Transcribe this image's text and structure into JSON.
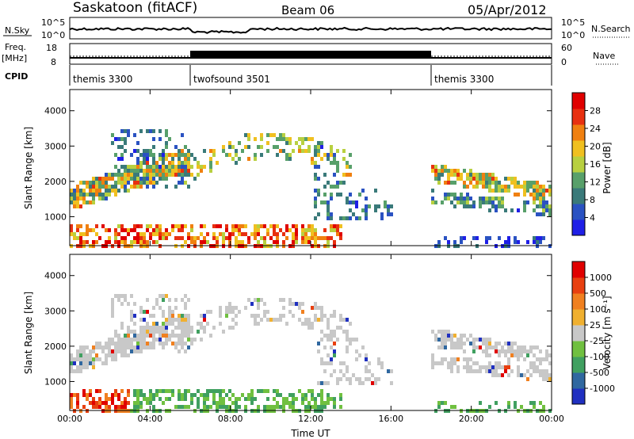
{
  "header": {
    "station": "Saskatoon (fitACF)",
    "beam": "Beam 06",
    "date": "05/Apr/2012"
  },
  "noise_panel": {
    "left_label": "N.Sky",
    "left_ticks": [
      "10^5",
      "10^0"
    ],
    "right_ticks": [
      "10^5",
      "10^0"
    ],
    "right_label": "N.Search"
  },
  "freq_panel": {
    "left_label_1": "Freq.",
    "left_label_2": "[MHz]",
    "left_ticks": [
      "18",
      "8"
    ],
    "right_ticks": [
      "60",
      "0"
    ],
    "right_label": "Nave"
  },
  "cpid_panel": {
    "label": "CPID",
    "segments": [
      {
        "name": "themis 3300",
        "start_hour": 0
      },
      {
        "name": "twofsound 3501",
        "start_hour": 6
      },
      {
        "name": "themis 3300",
        "start_hour": 18
      }
    ]
  },
  "chart_data": [
    {
      "type": "heatmap",
      "title": "",
      "xlabel": "",
      "ylabel": "Slant Range [km]",
      "xlim_hours": [
        0,
        24
      ],
      "ylim_km": [
        180,
        4600
      ],
      "y_ticks": [
        "1000",
        "2000",
        "3000",
        "4000"
      ],
      "colorbar": {
        "label": "Power [dB]",
        "ticks": [
          "28",
          "24",
          "20",
          "16",
          "12",
          "8",
          "4"
        ],
        "colors": [
          "#1f1fe6",
          "#2a52c2",
          "#3a7a7a",
          "#58a06a",
          "#b8d040",
          "#f0c020",
          "#f08010",
          "#e83010",
          "#e00000"
        ]
      },
      "features": [
        {
          "name": "scatter band A",
          "hours": [
            0,
            6
          ],
          "range_km": [
            1200,
            2600
          ]
        },
        {
          "name": "near-range echoes",
          "hours": [
            0,
            13.5
          ],
          "range_km": [
            200,
            800
          ]
        },
        {
          "name": "high-range arc",
          "hours": [
            5.5,
            14
          ],
          "range_km": [
            2600,
            3500
          ]
        },
        {
          "name": "evening bands",
          "hours": [
            18,
            24
          ],
          "range_km": [
            1200,
            3200
          ]
        }
      ]
    },
    {
      "type": "heatmap",
      "title": "",
      "xlabel": "Time UT",
      "ylabel": "Slant Range [km]",
      "xlim_hours": [
        0,
        24
      ],
      "ylim_km": [
        180,
        4600
      ],
      "x_ticks": [
        "00:00",
        "04:00",
        "08:00",
        "12:00",
        "16:00",
        "20:00",
        "00:00"
      ],
      "y_ticks": [
        "1000",
        "2000",
        "3000",
        "4000"
      ],
      "colorbar": {
        "label": "Velocity [m s⁻¹]",
        "ticks": [
          "1000",
          "500",
          "100",
          "25",
          "-25",
          "-100",
          "-500",
          "-1000"
        ],
        "colors": [
          "#2030c0",
          "#3068a0",
          "#40a060",
          "#70c040",
          "#c8c8c8",
          "#f0b030",
          "#f08020",
          "#e84010",
          "#e00000"
        ]
      }
    }
  ]
}
